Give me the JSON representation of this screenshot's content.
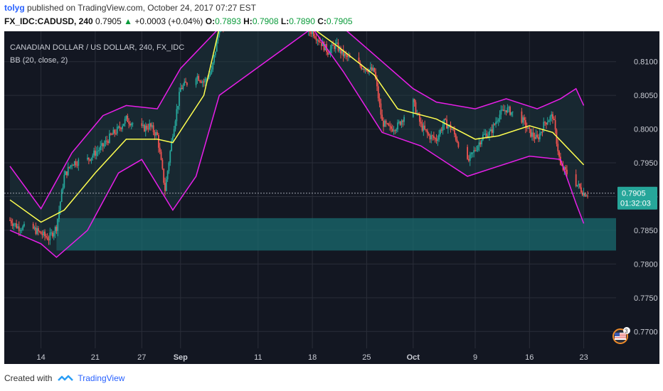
{
  "header": {
    "author": "tolyg",
    "published_text": "published on TradingView.com, October 24, 2017 07:27 EST",
    "symbol": "FX_IDC:CADUSD, 240",
    "last": "0.7905",
    "change": "+0.0003 (+0.04%)",
    "open_label": "O:",
    "open": "0.7893",
    "high_label": "H:",
    "high": "0.7908",
    "low_label": "L:",
    "low": "0.7890",
    "close_label": "C:",
    "close": "0.7905"
  },
  "legend": {
    "title": "CANADIAN DOLLAR / US DOLLAR, 240, FX_IDC",
    "indicator": "BB (20, close, 2)"
  },
  "price_tag": {
    "value": "0.7905",
    "countdown": "01:32:03"
  },
  "footer": {
    "created_with": "Created with",
    "brand": "TradingView"
  },
  "colors": {
    "background": "#131722",
    "grid": "#2a2e39",
    "up": "#26a69a",
    "down": "#ef5350",
    "basis": "#ffff50",
    "bands": "#e91ee9",
    "band_fill": "#1f3d44",
    "zone": "#1a6b6f",
    "price_tag": "#26a69a"
  },
  "chart_data": {
    "type": "candlestick",
    "title": "CANADIAN DOLLAR / US DOLLAR, 240, FX_IDC",
    "indicator": "BB (20, close, 2)",
    "x_ticks": [
      "14",
      "21",
      "27",
      "Sep",
      "11",
      "18",
      "25",
      "Oct",
      "9",
      "16",
      "23"
    ],
    "y_ticks": [
      "0.8100",
      "0.8050",
      "0.8000",
      "0.7950",
      "0.7900",
      "0.7850",
      "0.7800",
      "0.7750",
      "0.7700"
    ],
    "ylim": [
      0.7675,
      0.8145
    ],
    "highlight_zone": [
      0.782,
      0.7868
    ],
    "last_price": 0.7905,
    "close_series": [
      {
        "d": "2017-08-10",
        "v": 0.7865
      },
      {
        "d": "2017-08-11",
        "v": 0.7855
      },
      {
        "d": "2017-08-13",
        "v": 0.7852
      },
      {
        "d": "2017-08-14",
        "v": 0.7845
      },
      {
        "d": "2017-08-15",
        "v": 0.7838
      },
      {
        "d": "2017-08-16",
        "v": 0.7855
      },
      {
        "d": "2017-08-17",
        "v": 0.793
      },
      {
        "d": "2017-08-18",
        "v": 0.795
      },
      {
        "d": "2017-08-20",
        "v": 0.7955
      },
      {
        "d": "2017-08-21",
        "v": 0.7965
      },
      {
        "d": "2017-08-22",
        "v": 0.7975
      },
      {
        "d": "2017-08-23",
        "v": 0.799
      },
      {
        "d": "2017-08-24",
        "v": 0.8
      },
      {
        "d": "2017-08-25",
        "v": 0.8015
      },
      {
        "d": "2017-08-27",
        "v": 0.8
      },
      {
        "d": "2017-08-28",
        "v": 0.8005
      },
      {
        "d": "2017-08-29",
        "v": 0.799
      },
      {
        "d": "2017-08-30",
        "v": 0.791
      },
      {
        "d": "2017-08-31",
        "v": 0.7995
      },
      {
        "d": "2017-09-01",
        "v": 0.806
      },
      {
        "d": "2017-09-03",
        "v": 0.808
      },
      {
        "d": "2017-09-04",
        "v": 0.807
      },
      {
        "d": "2017-09-05",
        "v": 0.8085
      },
      {
        "d": "2017-09-06",
        "v": 0.815
      },
      {
        "d": "2017-09-18",
        "v": 0.8145
      },
      {
        "d": "2017-09-19",
        "v": 0.813
      },
      {
        "d": "2017-09-20",
        "v": 0.8115
      },
      {
        "d": "2017-09-21",
        "v": 0.8125
      },
      {
        "d": "2017-09-22",
        "v": 0.811
      },
      {
        "d": "2017-09-24",
        "v": 0.8095
      },
      {
        "d": "2017-09-25",
        "v": 0.809
      },
      {
        "d": "2017-09-26",
        "v": 0.8085
      },
      {
        "d": "2017-09-27",
        "v": 0.801
      },
      {
        "d": "2017-09-28",
        "v": 0.8
      },
      {
        "d": "2017-09-29",
        "v": 0.8005
      },
      {
        "d": "2017-10-01",
        "v": 0.804
      },
      {
        "d": "2017-10-02",
        "v": 0.8005
      },
      {
        "d": "2017-10-03",
        "v": 0.799
      },
      {
        "d": "2017-10-04",
        "v": 0.7985
      },
      {
        "d": "2017-10-05",
        "v": 0.801
      },
      {
        "d": "2017-10-06",
        "v": 0.8
      },
      {
        "d": "2017-10-08",
        "v": 0.795
      },
      {
        "d": "2017-10-09",
        "v": 0.797
      },
      {
        "d": "2017-10-10",
        "v": 0.799
      },
      {
        "d": "2017-10-11",
        "v": 0.7995
      },
      {
        "d": "2017-10-12",
        "v": 0.802
      },
      {
        "d": "2017-10-13",
        "v": 0.803
      },
      {
        "d": "2017-10-15",
        "v": 0.8015
      },
      {
        "d": "2017-10-16",
        "v": 0.7995
      },
      {
        "d": "2017-10-17",
        "v": 0.7985
      },
      {
        "d": "2017-10-18",
        "v": 0.801
      },
      {
        "d": "2017-10-19",
        "v": 0.802
      },
      {
        "d": "2017-10-20",
        "v": 0.7945
      },
      {
        "d": "2017-10-22",
        "v": 0.792
      },
      {
        "d": "2017-10-23",
        "v": 0.7905
      }
    ],
    "basis_series": [
      {
        "d": "2017-08-10",
        "v": 0.7895
      },
      {
        "d": "2017-08-14",
        "v": 0.7862
      },
      {
        "d": "2017-08-17",
        "v": 0.788
      },
      {
        "d": "2017-08-21",
        "v": 0.7935
      },
      {
        "d": "2017-08-25",
        "v": 0.7985
      },
      {
        "d": "2017-08-29",
        "v": 0.7985
      },
      {
        "d": "2017-08-31",
        "v": 0.798
      },
      {
        "d": "2017-09-04",
        "v": 0.805
      },
      {
        "d": "2017-09-06",
        "v": 0.815
      },
      {
        "d": "2017-09-18",
        "v": 0.815
      },
      {
        "d": "2017-09-21",
        "v": 0.8125
      },
      {
        "d": "2017-09-26",
        "v": 0.808
      },
      {
        "d": "2017-09-29",
        "v": 0.803
      },
      {
        "d": "2017-10-04",
        "v": 0.8015
      },
      {
        "d": "2017-10-09",
        "v": 0.7985
      },
      {
        "d": "2017-10-12",
        "v": 0.799
      },
      {
        "d": "2017-10-16",
        "v": 0.8005
      },
      {
        "d": "2017-10-19",
        "v": 0.7995
      },
      {
        "d": "2017-10-23",
        "v": 0.7947
      }
    ],
    "upper_band_series": [
      {
        "d": "2017-08-10",
        "v": 0.7945
      },
      {
        "d": "2017-08-14",
        "v": 0.7882
      },
      {
        "d": "2017-08-18",
        "v": 0.7965
      },
      {
        "d": "2017-08-22",
        "v": 0.802
      },
      {
        "d": "2017-08-25",
        "v": 0.8035
      },
      {
        "d": "2017-08-29",
        "v": 0.803
      },
      {
        "d": "2017-09-01",
        "v": 0.809
      },
      {
        "d": "2017-09-06",
        "v": 0.815
      },
      {
        "d": "2017-09-18",
        "v": 0.815
      },
      {
        "d": "2017-09-22",
        "v": 0.815
      },
      {
        "d": "2017-09-27",
        "v": 0.81
      },
      {
        "d": "2017-10-01",
        "v": 0.806
      },
      {
        "d": "2017-10-04",
        "v": 0.804
      },
      {
        "d": "2017-10-09",
        "v": 0.803
      },
      {
        "d": "2017-10-13",
        "v": 0.8045
      },
      {
        "d": "2017-10-17",
        "v": 0.803
      },
      {
        "d": "2017-10-20",
        "v": 0.8045
      },
      {
        "d": "2017-10-22",
        "v": 0.806
      },
      {
        "d": "2017-10-23",
        "v": 0.8035
      }
    ],
    "lower_band_series": [
      {
        "d": "2017-08-10",
        "v": 0.785
      },
      {
        "d": "2017-08-14",
        "v": 0.783
      },
      {
        "d": "2017-08-16",
        "v": 0.781
      },
      {
        "d": "2017-08-20",
        "v": 0.785
      },
      {
        "d": "2017-08-24",
        "v": 0.7935
      },
      {
        "d": "2017-08-27",
        "v": 0.7955
      },
      {
        "d": "2017-08-31",
        "v": 0.788
      },
      {
        "d": "2017-09-03",
        "v": 0.793
      },
      {
        "d": "2017-09-06",
        "v": 0.805
      },
      {
        "d": "2017-09-18",
        "v": 0.815
      },
      {
        "d": "2017-09-22",
        "v": 0.8085
      },
      {
        "d": "2017-09-27",
        "v": 0.7995
      },
      {
        "d": "2017-10-02",
        "v": 0.7975
      },
      {
        "d": "2017-10-08",
        "v": 0.793
      },
      {
        "d": "2017-10-12",
        "v": 0.7945
      },
      {
        "d": "2017-10-16",
        "v": 0.796
      },
      {
        "d": "2017-10-20",
        "v": 0.7955
      },
      {
        "d": "2017-10-22",
        "v": 0.789
      },
      {
        "d": "2017-10-23",
        "v": 0.786
      }
    ]
  }
}
